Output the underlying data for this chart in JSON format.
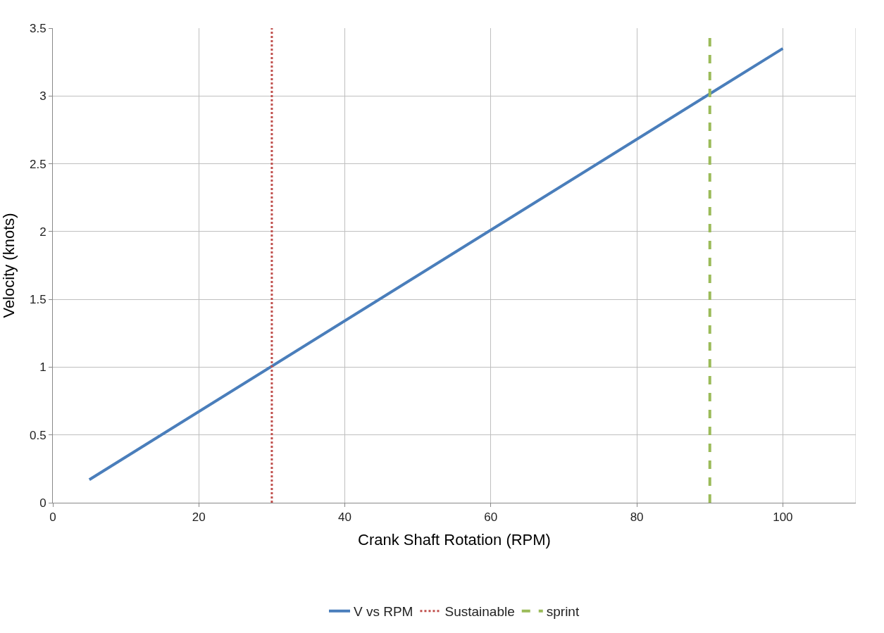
{
  "chart_data": {
    "type": "line",
    "xlabel": "Crank Shaft Rotation (RPM)",
    "ylabel": "Velocity (knots)",
    "xlim": [
      0,
      110
    ],
    "xticks": [
      0,
      20,
      40,
      60,
      80,
      100
    ],
    "ylim": [
      0,
      3.5
    ],
    "yticks": [
      0,
      0.5,
      1,
      1.5,
      2,
      2.5,
      3,
      3.5
    ],
    "grid": true,
    "legend": "bottom",
    "marker": "none",
    "series": [
      {
        "name": "V vs RPM",
        "color": "#4a7ebb",
        "line_style": "solid",
        "x": [
          5,
          100
        ],
        "values": [
          0.17,
          3.35
        ]
      },
      {
        "name": "Sustainable",
        "color": "#c0504d",
        "line_style": "dotted",
        "x": [
          30,
          30
        ],
        "values": [
          0,
          3.5
        ]
      },
      {
        "name": "sprint",
        "color": "#9bbb59",
        "line_style": "dashed",
        "x": [
          90,
          90
        ],
        "values": [
          0,
          3.45
        ]
      }
    ]
  }
}
